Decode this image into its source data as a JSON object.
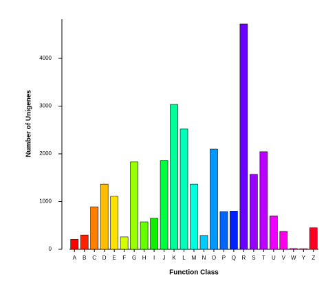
{
  "chart_data": {
    "type": "bar",
    "x_label": "Function Class",
    "y_label": "Number of Unigenes",
    "categories": [
      "A",
      "B",
      "C",
      "D",
      "E",
      "F",
      "G",
      "H",
      "I",
      "J",
      "K",
      "L",
      "M",
      "N",
      "O",
      "P",
      "Q",
      "R",
      "S",
      "T",
      "U",
      "V",
      "W",
      "Y",
      "Z"
    ],
    "values": [
      210,
      300,
      890,
      1365,
      1110,
      260,
      1830,
      575,
      650,
      1860,
      3035,
      2520,
      1365,
      290,
      2100,
      790,
      800,
      4720,
      1570,
      2045,
      700,
      375,
      15,
      12,
      450
    ],
    "colors": [
      "#ff0000",
      "#ff2200",
      "#ff8000",
      "#ffbf00",
      "#ffe000",
      "#d4ff00",
      "#99ff00",
      "#66ff00",
      "#11ee00",
      "#00ff40",
      "#00ff99",
      "#00ffbb",
      "#00ffdd",
      "#00ccff",
      "#0099ff",
      "#0066ff",
      "#0022ff",
      "#6a00ff",
      "#9900ff",
      "#bb00ff",
      "#ee00ff",
      "#ff00ee",
      "#ff00bb",
      "#ff0088",
      "#ff0022"
    ],
    "ylim": [
      0,
      4800
    ],
    "yticks": [
      0,
      1000,
      2000,
      3000,
      4000
    ]
  }
}
